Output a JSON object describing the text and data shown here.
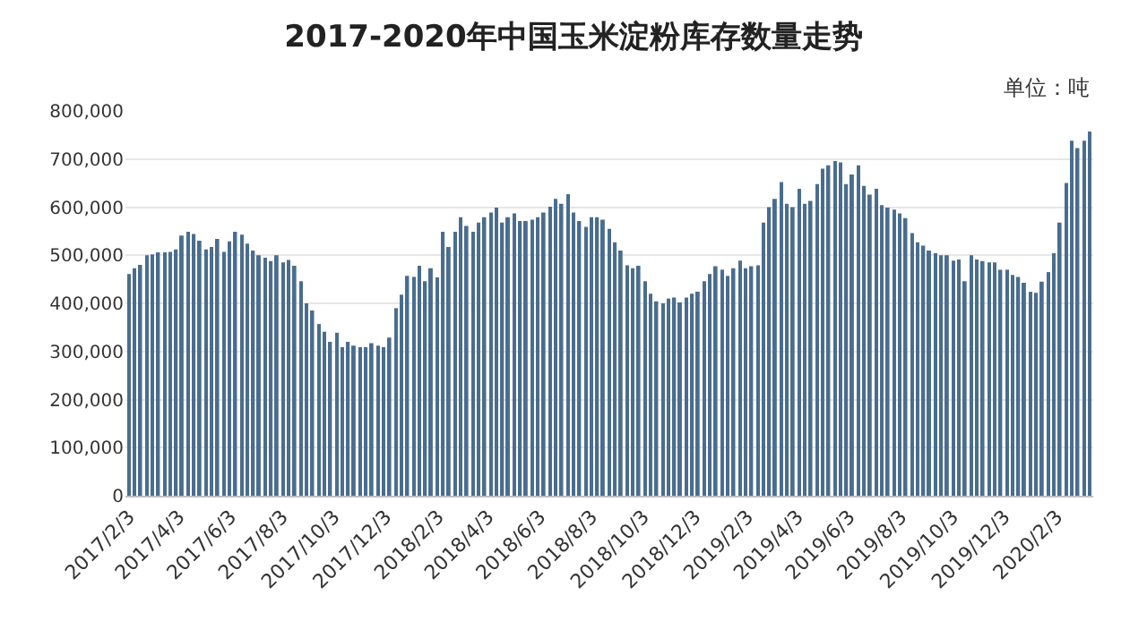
{
  "chart_data": {
    "type": "bar",
    "title": "2017-2020年中国玉米淀粉库存数量走势",
    "annotations": [
      "单位：吨"
    ],
    "x": [
      "2017-02-03",
      "2017-02-10",
      "2017-02-17",
      "2017-02-24",
      "2017-03-03",
      "2017-03-10",
      "2017-03-17",
      "2017-03-24",
      "2017-03-31",
      "2017-04-07",
      "2017-04-14",
      "2017-04-21",
      "2017-04-28",
      "2017-05-05",
      "2017-05-12",
      "2017-05-19",
      "2017-05-26",
      "2017-06-02",
      "2017-06-09",
      "2017-06-16",
      "2017-06-23",
      "2017-06-30",
      "2017-07-07",
      "2017-07-14",
      "2017-07-21",
      "2017-07-28",
      "2017-08-04",
      "2017-08-11",
      "2017-08-18",
      "2017-08-25",
      "2017-09-01",
      "2017-09-08",
      "2017-09-15",
      "2017-09-22",
      "2017-09-29",
      "2017-10-06",
      "2017-10-13",
      "2017-10-20",
      "2017-10-27",
      "2017-11-03",
      "2017-11-10",
      "2017-11-17",
      "2017-11-24",
      "2017-12-01",
      "2017-12-08",
      "2017-12-15",
      "2017-12-22",
      "2017-12-29",
      "2018-01-05",
      "2018-01-12",
      "2018-01-19",
      "2018-01-26",
      "2018-02-02",
      "2018-02-09",
      "2018-02-16",
      "2018-02-23",
      "2018-03-02",
      "2018-03-09",
      "2018-03-16",
      "2018-03-23",
      "2018-03-30",
      "2018-04-06",
      "2018-04-13",
      "2018-04-20",
      "2018-04-27",
      "2018-05-04",
      "2018-05-11",
      "2018-05-18",
      "2018-05-25",
      "2018-06-01",
      "2018-06-08",
      "2018-06-15",
      "2018-06-22",
      "2018-06-29",
      "2018-07-06",
      "2018-07-13",
      "2018-07-20",
      "2018-07-27",
      "2018-08-03",
      "2018-08-10",
      "2018-08-17",
      "2018-08-24",
      "2018-08-31",
      "2018-09-07",
      "2018-09-14",
      "2018-09-21",
      "2018-09-28",
      "2018-10-05",
      "2018-10-12",
      "2018-10-19",
      "2018-10-26",
      "2018-11-02",
      "2018-11-09",
      "2018-11-16",
      "2018-11-23",
      "2018-11-30",
      "2018-12-07",
      "2018-12-14",
      "2018-12-21",
      "2018-12-28",
      "2019-01-04",
      "2019-01-11",
      "2019-01-18",
      "2019-01-25",
      "2019-02-01",
      "2019-02-08",
      "2019-02-15",
      "2019-02-22",
      "2019-03-01",
      "2019-03-08",
      "2019-03-15",
      "2019-03-22",
      "2019-03-29",
      "2019-04-05",
      "2019-04-12",
      "2019-04-19",
      "2019-04-26",
      "2019-05-03",
      "2019-05-10",
      "2019-05-17",
      "2019-05-24",
      "2019-05-31",
      "2019-06-07",
      "2019-06-14",
      "2019-06-21",
      "2019-06-28",
      "2019-07-05",
      "2019-07-12",
      "2019-07-19",
      "2019-07-26",
      "2019-08-02",
      "2019-08-09",
      "2019-08-16",
      "2019-08-23",
      "2019-08-30",
      "2019-09-06",
      "2019-09-13",
      "2019-09-20",
      "2019-09-27",
      "2019-10-04",
      "2019-10-11",
      "2019-10-18",
      "2019-10-25",
      "2019-11-01",
      "2019-11-08",
      "2019-11-15",
      "2019-11-22",
      "2019-11-29",
      "2019-12-06",
      "2019-12-13",
      "2019-12-20",
      "2019-12-27",
      "2020-01-03",
      "2020-01-10",
      "2020-01-17",
      "2020-01-24",
      "2020-01-31",
      "2020-02-07",
      "2020-02-14",
      "2020-02-21",
      "2020-02-28",
      "2020-03-06",
      "2020-03-13"
    ],
    "values": [
      461000,
      473000,
      480000,
      500000,
      502000,
      506000,
      506000,
      507000,
      512000,
      541000,
      549000,
      544000,
      530000,
      512000,
      517000,
      534000,
      507000,
      529000,
      549000,
      543000,
      524000,
      510000,
      500000,
      495000,
      488000,
      500000,
      485000,
      490000,
      478000,
      446000,
      400000,
      385000,
      357000,
      341000,
      320000,
      339000,
      309000,
      320000,
      312000,
      309000,
      309000,
      317000,
      312000,
      309000,
      329000,
      390000,
      418000,
      457000,
      455000,
      478000,
      446000,
      473000,
      454000,
      549000,
      517000,
      549000,
      579000,
      561000,
      549000,
      568000,
      579000,
      589000,
      599000,
      568000,
      579000,
      587000,
      571000,
      571000,
      574000,
      579000,
      589000,
      601000,
      617000,
      607000,
      627000,
      589000,
      571000,
      559000,
      579000,
      579000,
      574000,
      555000,
      527000,
      510000,
      479000,
      473000,
      478000,
      446000,
      420000,
      404000,
      400000,
      410000,
      412000,
      402000,
      412000,
      420000,
      424000,
      446000,
      461000,
      477000,
      470000,
      457000,
      473000,
      489000,
      473000,
      477000,
      479000,
      568000,
      600000,
      617000,
      652000,
      607000,
      600000,
      638000,
      607000,
      613000,
      648000,
      680000,
      687000,
      696000,
      693000,
      648000,
      668000,
      687000,
      644000,
      626000,
      638000,
      604000,
      599000,
      595000,
      587000,
      577000,
      546000,
      527000,
      520000,
      510000,
      504000,
      500000,
      500000,
      489000,
      491000,
      446000,
      500000,
      491000,
      488000,
      485000,
      485000,
      470000,
      470000,
      459000,
      455000,
      443000,
      424000,
      422000,
      445000,
      465000,
      504000,
      568000,
      650000,
      738000,
      723000,
      738000,
      757000
    ],
    "color": "#4a6d8f",
    "xlim": [
      "2017-01-30",
      "2020-03-17"
    ],
    "xticks": [
      {
        "value": "2017-02-03",
        "label": "2017/2/3"
      },
      {
        "value": "2017-04-03",
        "label": "2017/4/3"
      },
      {
        "value": "2017-06-03",
        "label": "2017/6/3"
      },
      {
        "value": "2017-08-03",
        "label": "2017/8/3"
      },
      {
        "value": "2017-10-03",
        "label": "2017/10/3"
      },
      {
        "value": "2017-12-03",
        "label": "2017/12/3"
      },
      {
        "value": "2018-02-03",
        "label": "2018/2/3"
      },
      {
        "value": "2018-04-03",
        "label": "2018/4/3"
      },
      {
        "value": "2018-06-03",
        "label": "2018/6/3"
      },
      {
        "value": "2018-08-03",
        "label": "2018/8/3"
      },
      {
        "value": "2018-10-03",
        "label": "2018/10/3"
      },
      {
        "value": "2018-12-03",
        "label": "2018/12/3"
      },
      {
        "value": "2019-02-03",
        "label": "2019/2/3"
      },
      {
        "value": "2019-04-03",
        "label": "2019/4/3"
      },
      {
        "value": "2019-06-03",
        "label": "2019/6/3"
      },
      {
        "value": "2019-08-03",
        "label": "2019/8/3"
      },
      {
        "value": "2019-10-03",
        "label": "2019/10/3"
      },
      {
        "value": "2019-12-03",
        "label": "2019/12/3"
      },
      {
        "value": "2020-02-03",
        "label": "2020/2/3"
      }
    ],
    "ylim": [
      0,
      800000
    ],
    "yticks": [
      0,
      {
        "value": 100000,
        "label": "100,000"
      },
      {
        "value": 200000,
        "label": "200,000"
      },
      {
        "value": 300000,
        "label": "300,000"
      },
      {
        "value": 400000,
        "label": "400,000"
      },
      {
        "value": 500000,
        "label": "500,000"
      },
      {
        "value": 600000,
        "label": "600,000"
      },
      {
        "value": 700000,
        "label": "700,000"
      },
      {
        "value": 800000,
        "label": "800,000"
      }
    ],
    "grid": "y",
    "legend": false
  }
}
